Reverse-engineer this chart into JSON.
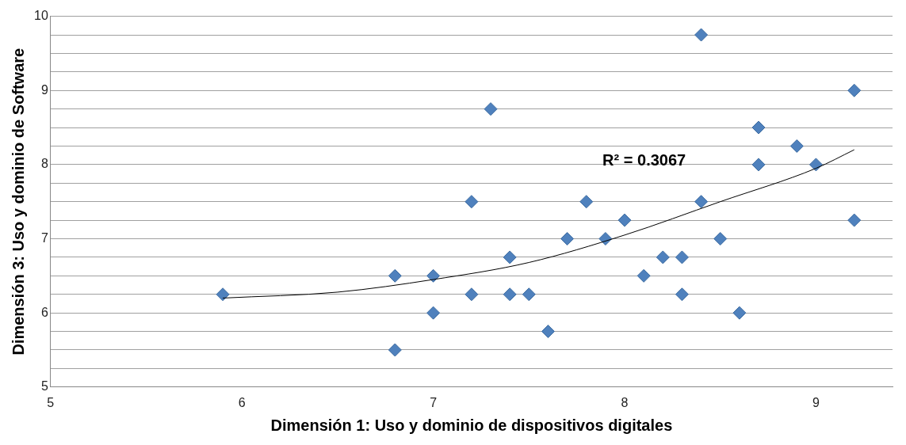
{
  "chart_data": {
    "type": "scatter",
    "xlabel": "Dimensión 1: Uso y dominio de dispositivos digitales",
    "ylabel": "Dimensión 3: Uso y dominio de Software",
    "series": [
      {
        "type": "scatter",
        "color": "#4f81bd",
        "marker": "diamond",
        "x": [
          5.9,
          6.8,
          6.8,
          7.0,
          7.0,
          7.2,
          7.2,
          7.3,
          7.4,
          7.4,
          7.5,
          7.6,
          7.7,
          7.8,
          7.9,
          8.0,
          8.1,
          8.2,
          8.3,
          8.3,
          8.4,
          8.4,
          8.5,
          8.6,
          8.7,
          8.7,
          8.9,
          9.0,
          9.2,
          9.2
        ],
        "values": [
          6.25,
          6.5,
          5.5,
          6.5,
          6.0,
          7.5,
          6.25,
          8.75,
          6.75,
          6.25,
          6.25,
          5.75,
          7.0,
          7.5,
          7.0,
          7.25,
          6.5,
          6.75,
          6.75,
          6.25,
          9.75,
          7.5,
          7.0,
          6.0,
          8.5,
          8.0,
          8.25,
          8.0,
          9.0,
          7.25
        ]
      },
      {
        "type": "line",
        "color": "#000000",
        "marker": "none",
        "x": [
          5.9,
          6.5,
          7.0,
          7.5,
          8.0,
          8.5,
          9.0,
          9.2
        ],
        "values": [
          6.2,
          6.28,
          6.45,
          6.68,
          7.05,
          7.5,
          7.95,
          8.2
        ]
      }
    ],
    "xlim": [
      5,
      9.4
    ],
    "xticks": [
      5,
      6,
      7,
      8,
      9
    ],
    "ylim": [
      5,
      10
    ],
    "yticks": [
      5,
      {
        "value": 5.25,
        "label": null
      },
      {
        "value": 5.5,
        "label": null
      },
      {
        "value": 5.75,
        "label": null
      },
      6,
      {
        "value": 6.25,
        "label": null
      },
      {
        "value": 6.5,
        "label": null
      },
      {
        "value": 6.75,
        "label": null
      },
      7,
      {
        "value": 7.25,
        "label": null
      },
      {
        "value": 7.5,
        "label": null
      },
      {
        "value": 7.75,
        "label": null
      },
      8,
      {
        "value": 8.25,
        "label": null
      },
      {
        "value": 8.5,
        "label": null
      },
      {
        "value": 8.75,
        "label": null
      },
      9,
      {
        "value": 9.25,
        "label": null
      },
      {
        "value": 9.5,
        "label": null
      },
      {
        "value": 9.75,
        "label": null
      },
      10
    ],
    "grid": "y",
    "legend": false,
    "annotations": [
      "R² = 0.3067"
    ]
  }
}
